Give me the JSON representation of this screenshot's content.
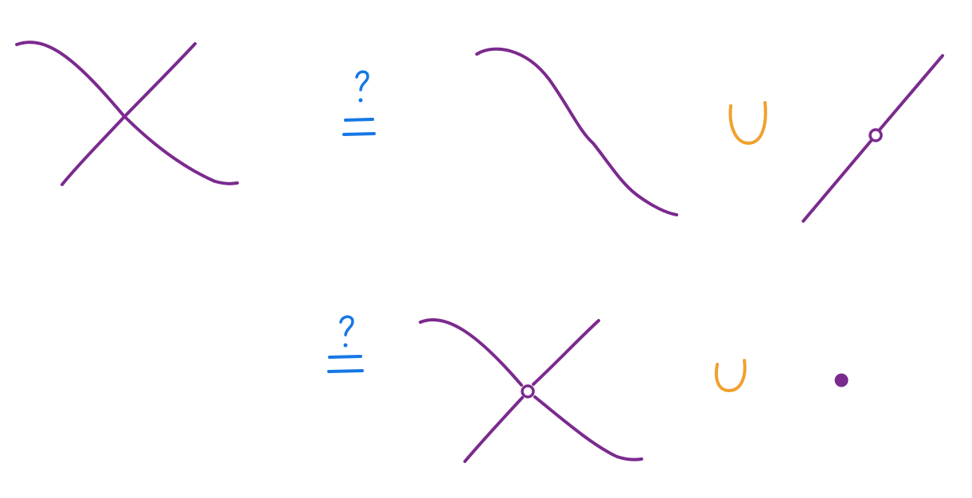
{
  "colors": {
    "curve": "#7B2A8E",
    "question_equals": "#1677E5",
    "union": "#F0A12E",
    "background": "#FFFFFF"
  },
  "symbols": {
    "question_equals_top": {
      "question_mark": "?",
      "equals": "="
    },
    "question_equals_bottom": {
      "question_mark": "?",
      "equals": "="
    },
    "union_top": "∪",
    "union_bottom": "∪"
  },
  "icons": {
    "crossing_curves": "two-crossing-curves-icon",
    "punctured_point": "open-circle-icon",
    "isolated_point": "filled-dot-icon"
  }
}
